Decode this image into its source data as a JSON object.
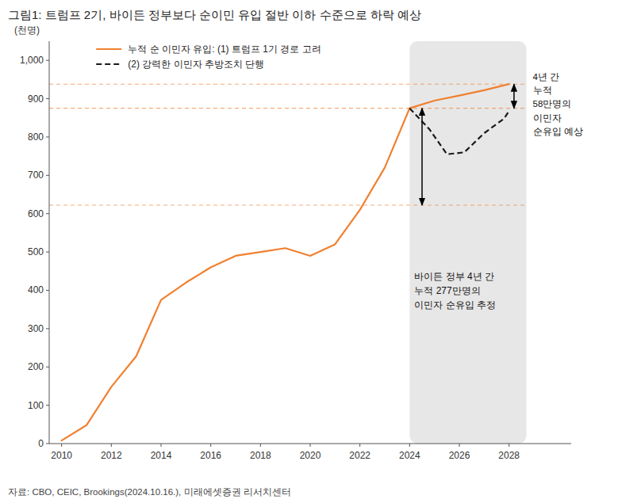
{
  "chart_data": {
    "type": "line",
    "title": "그림1: 트럼프 2기, 바이든 정부보다 순이민 유입 절반 이하 수준으로 하락 예상",
    "ylabel": "(천명)",
    "source": "자료: CBO,  CEIC,  Brookings(2024.10.16.),  미래에셋증권 리서치센터",
    "series": [
      {
        "name": "누적 순 이민자 유입: (1) 트럼프 1기 경로 고려",
        "color": "#F08030",
        "line_style": "solid",
        "x": [
          2010,
          2011,
          2012,
          2013,
          2014,
          2015,
          2016,
          2017,
          2018,
          2019,
          2020,
          2021,
          2022,
          2023,
          2024,
          2025,
          2026,
          2027,
          2028
        ],
        "values": [
          8,
          48,
          148,
          228,
          375,
          420,
          460,
          490,
          500,
          510,
          490,
          520,
          610,
          720,
          875,
          895,
          908,
          922,
          938
        ]
      },
      {
        "name": "(2) 강력한 이민자 추방조치 단행",
        "color": "#1a1a1a",
        "line_style": "dashed",
        "x": [
          2024,
          2024.8,
          2025.5,
          2026.2,
          2027,
          2027.8,
          2028
        ],
        "values": [
          875,
          820,
          755,
          760,
          810,
          848,
          868
        ]
      }
    ],
    "reference_lines": {
      "y": [
        938,
        875,
        622
      ],
      "x": [
        2009.5,
        2028.7
      ],
      "color": "#F08030"
    },
    "shaded_range": [
      2024,
      2028.7
    ],
    "shade_color": "#d0d0d0",
    "arrows": [
      {
        "x": 2024.5,
        "from": 875,
        "to": 622
      },
      {
        "x": 2028.2,
        "from": 938,
        "to": 875
      }
    ],
    "annotations": [
      {
        "text": "바이든 정부 4년 간\n누적 277만명의\n이민자 순유입 추정"
      },
      {
        "text": "4년 간\n누적\n58만명의\n이민자\n순유입 예상"
      }
    ],
    "xlim": [
      2009.5,
      2030.5
    ],
    "ylim": [
      0,
      1050
    ],
    "xticks": [
      2010,
      2012,
      2014,
      2016,
      2018,
      2020,
      2022,
      2024,
      2026,
      2028
    ],
    "yticks": [
      0,
      100,
      200,
      300,
      400,
      500,
      600,
      700,
      800,
      900,
      {
        "value": 1000,
        "label": "1,000"
      }
    ],
    "grid": false,
    "legend": "upper left"
  }
}
